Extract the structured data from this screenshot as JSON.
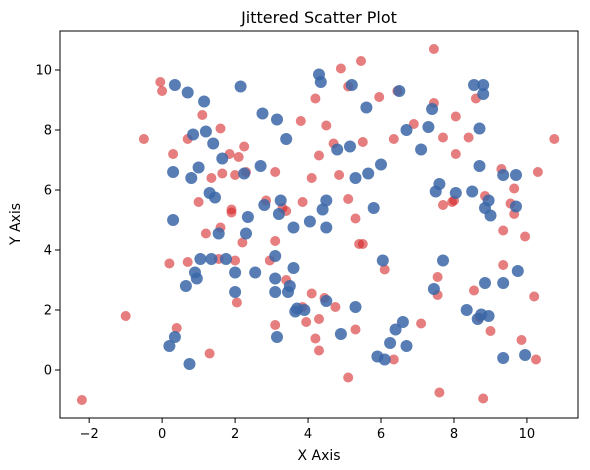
{
  "chart_data": {
    "type": "scatter",
    "title": "Jittered Scatter Plot",
    "xlabel": "X Axis",
    "ylabel": "Y Axis",
    "xlim": [
      -2.8,
      11.4
    ],
    "ylim": [
      -1.6,
      11.3
    ],
    "xticks": [
      -2,
      0,
      2,
      4,
      6,
      8,
      10
    ],
    "yticks": [
      0,
      2,
      4,
      6,
      8,
      10
    ],
    "grid": false,
    "legend": "none",
    "series": [
      {
        "color": "#d62728",
        "points": [
          [
            -2.2,
            -1.0
          ],
          [
            -1.0,
            1.8
          ],
          [
            -0.5,
            7.7
          ],
          [
            -0.05,
            9.6
          ],
          [
            0.0,
            9.3
          ],
          [
            0.2,
            3.55
          ],
          [
            0.3,
            7.2
          ],
          [
            0.4,
            1.4
          ],
          [
            0.7,
            3.6
          ],
          [
            0.7,
            7.7
          ],
          [
            1.0,
            5.6
          ],
          [
            1.1,
            8.5
          ],
          [
            1.2,
            4.55
          ],
          [
            1.3,
            0.55
          ],
          [
            1.35,
            6.4
          ],
          [
            1.6,
            8.05
          ],
          [
            1.55,
            3.7
          ],
          [
            1.6,
            4.75
          ],
          [
            1.65,
            6.55
          ],
          [
            1.85,
            7.2
          ],
          [
            1.9,
            5.35
          ],
          [
            1.9,
            5.25
          ],
          [
            2.0,
            3.65
          ],
          [
            2.05,
            2.25
          ],
          [
            2.1,
            7.1
          ],
          [
            2.2,
            4.25
          ],
          [
            2.25,
            7.45
          ],
          [
            2.3,
            6.6
          ],
          [
            2.0,
            6.5
          ],
          [
            2.85,
            5.65
          ],
          [
            2.95,
            3.65
          ],
          [
            3.1,
            6.6
          ],
          [
            3.1,
            1.5
          ],
          [
            3.1,
            4.3
          ],
          [
            3.3,
            5.4
          ],
          [
            3.4,
            3.0
          ],
          [
            3.4,
            5.3
          ],
          [
            3.8,
            8.3
          ],
          [
            3.85,
            5.6
          ],
          [
            3.85,
            2.1
          ],
          [
            3.95,
            1.6
          ],
          [
            4.1,
            2.55
          ],
          [
            4.1,
            6.4
          ],
          [
            4.2,
            9.05
          ],
          [
            4.2,
            1.05
          ],
          [
            4.3,
            0.65
          ],
          [
            4.3,
            7.15
          ],
          [
            4.3,
            1.7
          ],
          [
            4.5,
            8.15
          ],
          [
            4.45,
            2.4
          ],
          [
            4.7,
            7.55
          ],
          [
            4.75,
            2.1
          ],
          [
            4.85,
            6.5
          ],
          [
            4.9,
            10.05
          ],
          [
            5.1,
            9.45
          ],
          [
            5.1,
            5.7
          ],
          [
            5.1,
            -0.25
          ],
          [
            5.3,
            5.05
          ],
          [
            5.3,
            1.35
          ],
          [
            5.4,
            4.2
          ],
          [
            5.5,
            4.2
          ],
          [
            5.45,
            10.3
          ],
          [
            5.5,
            7.6
          ],
          [
            5.95,
            9.1
          ],
          [
            6.1,
            3.35
          ],
          [
            6.35,
            7.7
          ],
          [
            6.35,
            0.35
          ],
          [
            6.45,
            9.3
          ],
          [
            6.9,
            8.2
          ],
          [
            7.1,
            1.55
          ],
          [
            7.45,
            8.9
          ],
          [
            7.45,
            10.7
          ],
          [
            7.55,
            2.5
          ],
          [
            7.55,
            3.1
          ],
          [
            7.6,
            -0.75
          ],
          [
            7.7,
            7.75
          ],
          [
            7.7,
            5.5
          ],
          [
            7.95,
            5.6
          ],
          [
            8.0,
            5.65
          ],
          [
            8.05,
            8.45
          ],
          [
            8.05,
            7.2
          ],
          [
            8.4,
            7.75
          ],
          [
            8.55,
            2.65
          ],
          [
            8.6,
            9.05
          ],
          [
            8.7,
            1.75
          ],
          [
            8.8,
            -0.95
          ],
          [
            8.85,
            5.8
          ],
          [
            9.0,
            1.3
          ],
          [
            9.3,
            6.7
          ],
          [
            9.35,
            3.5
          ],
          [
            9.35,
            4.65
          ],
          [
            9.55,
            5.55
          ],
          [
            9.65,
            6.05
          ],
          [
            9.65,
            5.2
          ],
          [
            9.85,
            1.0
          ],
          [
            9.95,
            4.45
          ],
          [
            10.2,
            2.45
          ],
          [
            10.25,
            0.35
          ],
          [
            10.3,
            6.6
          ],
          [
            10.75,
            7.7
          ]
        ]
      },
      {
        "color": "#3a66a7",
        "points": [
          [
            0.2,
            0.8
          ],
          [
            0.3,
            5.0
          ],
          [
            0.35,
            9.5
          ],
          [
            0.3,
            6.6
          ],
          [
            0.35,
            1.1
          ],
          [
            0.65,
            2.8
          ],
          [
            0.7,
            9.25
          ],
          [
            0.75,
            0.2
          ],
          [
            0.8,
            6.4
          ],
          [
            0.85,
            7.85
          ],
          [
            0.9,
            3.25
          ],
          [
            0.95,
            3.05
          ],
          [
            1.0,
            6.75
          ],
          [
            1.05,
            3.7
          ],
          [
            1.15,
            8.95
          ],
          [
            1.2,
            7.95
          ],
          [
            1.3,
            5.9
          ],
          [
            1.35,
            3.7
          ],
          [
            1.4,
            7.55
          ],
          [
            1.45,
            5.75
          ],
          [
            1.55,
            4.55
          ],
          [
            1.65,
            7.05
          ],
          [
            1.75,
            3.7
          ],
          [
            2.0,
            3.25
          ],
          [
            2.0,
            2.6
          ],
          [
            2.15,
            9.45
          ],
          [
            2.25,
            6.55
          ],
          [
            2.3,
            4.55
          ],
          [
            2.35,
            5.1
          ],
          [
            2.55,
            3.25
          ],
          [
            2.7,
            6.8
          ],
          [
            2.75,
            8.55
          ],
          [
            2.8,
            5.5
          ],
          [
            3.1,
            3.8
          ],
          [
            3.1,
            3.05
          ],
          [
            3.1,
            2.6
          ],
          [
            3.15,
            8.35
          ],
          [
            3.15,
            1.1
          ],
          [
            3.2,
            5.2
          ],
          [
            3.25,
            5.65
          ],
          [
            3.4,
            7.7
          ],
          [
            3.45,
            2.6
          ],
          [
            3.5,
            2.8
          ],
          [
            3.6,
            4.75
          ],
          [
            3.6,
            3.4
          ],
          [
            3.65,
            1.95
          ],
          [
            3.7,
            2.05
          ],
          [
            3.9,
            2.0
          ],
          [
            4.05,
            4.95
          ],
          [
            4.3,
            9.85
          ],
          [
            4.35,
            9.6
          ],
          [
            4.4,
            5.35
          ],
          [
            4.5,
            5.65
          ],
          [
            4.5,
            2.3
          ],
          [
            4.5,
            4.75
          ],
          [
            4.8,
            7.35
          ],
          [
            4.9,
            1.2
          ],
          [
            5.15,
            7.45
          ],
          [
            5.2,
            9.5
          ],
          [
            5.3,
            2.1
          ],
          [
            5.3,
            6.4
          ],
          [
            5.6,
            8.75
          ],
          [
            5.65,
            6.55
          ],
          [
            5.8,
            5.4
          ],
          [
            5.9,
            0.45
          ],
          [
            6.0,
            6.85
          ],
          [
            6.05,
            3.65
          ],
          [
            6.1,
            0.35
          ],
          [
            6.25,
            0.9
          ],
          [
            6.4,
            1.35
          ],
          [
            6.5,
            9.3
          ],
          [
            6.6,
            1.6
          ],
          [
            6.7,
            0.8
          ],
          [
            6.7,
            8.0
          ],
          [
            7.1,
            7.35
          ],
          [
            7.3,
            8.1
          ],
          [
            7.4,
            8.7
          ],
          [
            7.45,
            2.7
          ],
          [
            7.5,
            5.95
          ],
          [
            7.6,
            6.2
          ],
          [
            7.7,
            3.65
          ],
          [
            8.05,
            5.9
          ],
          [
            8.35,
            2.0
          ],
          [
            8.5,
            5.95
          ],
          [
            8.55,
            9.5
          ],
          [
            8.65,
            1.7
          ],
          [
            8.7,
            8.05
          ],
          [
            8.7,
            6.8
          ],
          [
            8.75,
            1.85
          ],
          [
            8.8,
            9.5
          ],
          [
            8.8,
            9.2
          ],
          [
            8.85,
            2.9
          ],
          [
            8.85,
            5.4
          ],
          [
            8.95,
            1.8
          ],
          [
            8.95,
            5.65
          ],
          [
            9.0,
            5.15
          ],
          [
            9.35,
            0.4
          ],
          [
            9.35,
            2.9
          ],
          [
            9.35,
            6.5
          ],
          [
            9.7,
            6.5
          ],
          [
            9.7,
            5.45
          ],
          [
            9.75,
            3.3
          ],
          [
            9.95,
            0.5
          ]
        ]
      }
    ]
  }
}
